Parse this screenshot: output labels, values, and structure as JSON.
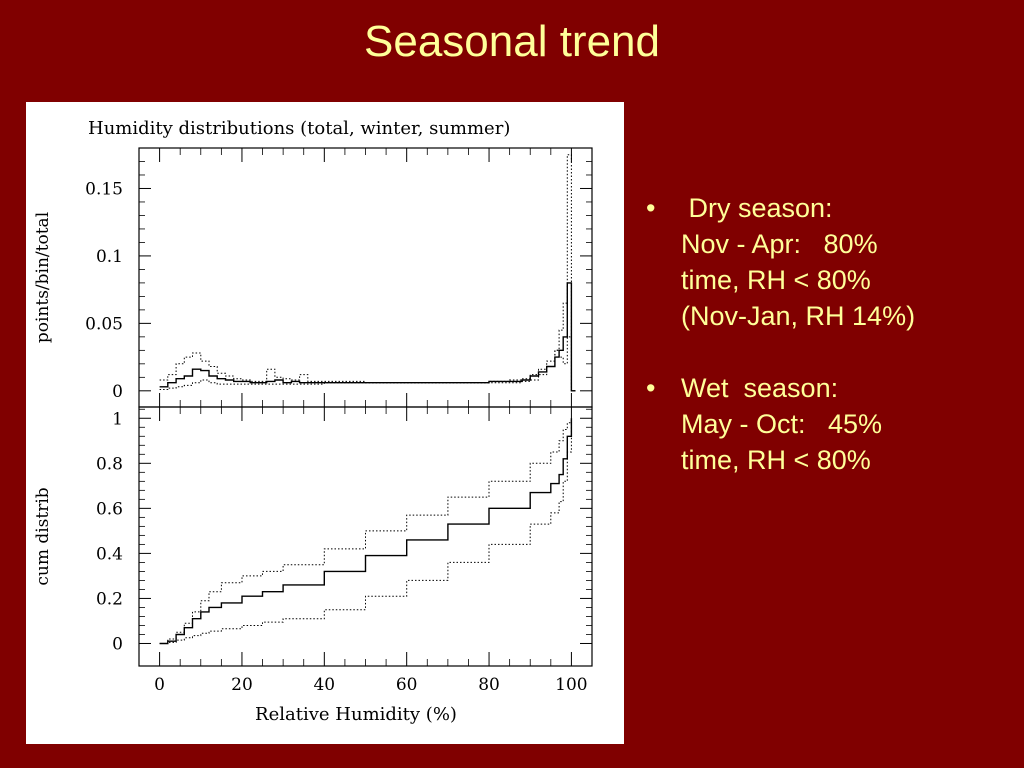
{
  "slide": {
    "title": "Seasonal trend",
    "bullets": [
      {
        "lines": [
          " Dry season:",
          "Nov - Apr:   80%",
          "time, RH < 80%",
          "(Nov-Jan, RH 14%)"
        ]
      },
      {
        "lines": [
          "Wet  season:",
          "May - Oct:   45%",
          "time, RH < 80%"
        ]
      }
    ]
  },
  "chart_data": [
    {
      "type": "line",
      "title": "Humidity distributions (total, winter, summer)",
      "xlabel": "",
      "ylabel": "points/bin/total",
      "xlim": [
        -5,
        105
      ],
      "ylim": [
        -0.012,
        0.18
      ],
      "yticks": [
        0,
        0.05,
        0.1,
        0.15
      ],
      "ytick_labels": [
        "0",
        "0.05",
        "0.1",
        "0.15"
      ],
      "xticks": [
        0,
        20,
        40,
        60,
        80,
        100
      ],
      "step": true,
      "series": [
        {
          "style": "solid",
          "x": [
            0,
            2,
            4,
            6,
            8,
            10,
            12,
            14,
            16,
            18,
            20,
            22,
            24,
            26,
            28,
            30,
            32,
            34,
            36,
            40,
            50,
            60,
            70,
            80,
            85,
            88,
            90,
            92,
            94,
            96,
            97,
            98,
            99,
            100,
            101
          ],
          "y": [
            0.003,
            0.006,
            0.009,
            0.011,
            0.016,
            0.015,
            0.011,
            0.009,
            0.008,
            0.007,
            0.007,
            0.006,
            0.006,
            0.007,
            0.008,
            0.006,
            0.007,
            0.006,
            0.006,
            0.006,
            0.006,
            0.006,
            0.006,
            0.007,
            0.007,
            0.008,
            0.011,
            0.014,
            0.018,
            0.025,
            0.03,
            0.04,
            0.08,
            0.0,
            0.0
          ]
        },
        {
          "style": "dotted",
          "x": [
            0,
            2,
            4,
            6,
            8,
            10,
            12,
            14,
            16,
            18,
            20,
            22,
            24,
            26,
            28,
            30,
            32,
            34,
            36,
            40,
            50,
            60,
            70,
            80,
            85,
            88,
            90,
            92,
            94,
            96,
            97,
            98,
            99,
            100,
            101
          ],
          "y": [
            0.008,
            0.012,
            0.02,
            0.025,
            0.028,
            0.022,
            0.018,
            0.013,
            0.011,
            0.009,
            0.008,
            0.007,
            0.007,
            0.016,
            0.01,
            0.009,
            0.008,
            0.012,
            0.007,
            0.007,
            0.006,
            0.006,
            0.006,
            0.006,
            0.006,
            0.007,
            0.008,
            0.012,
            0.018,
            0.03,
            0.045,
            0.065,
            0.175,
            0.0,
            0.0
          ]
        },
        {
          "style": "dotted",
          "x": [
            0,
            2,
            4,
            6,
            8,
            10,
            12,
            14,
            16,
            18,
            20,
            22,
            24,
            26,
            28,
            30,
            32,
            34,
            36,
            40,
            50,
            60,
            70,
            80,
            85,
            88,
            90,
            92,
            94,
            96,
            97,
            98,
            99,
            100,
            101
          ],
          "y": [
            0.001,
            0.002,
            0.003,
            0.004,
            0.006,
            0.008,
            0.006,
            0.005,
            0.005,
            0.005,
            0.005,
            0.005,
            0.005,
            0.005,
            0.005,
            0.005,
            0.005,
            0.005,
            0.005,
            0.006,
            0.006,
            0.006,
            0.006,
            0.007,
            0.008,
            0.009,
            0.012,
            0.016,
            0.022,
            0.03,
            0.025,
            0.02,
            0.04,
            0.0,
            0.0
          ]
        }
      ]
    },
    {
      "type": "line",
      "title": "",
      "xlabel": "Relative Humidity (%)",
      "ylabel": "cum distrib",
      "xlim": [
        -5,
        105
      ],
      "ylim": [
        -0.1,
        1.05
      ],
      "yticks": [
        0,
        0.2,
        0.4,
        0.6,
        0.8,
        1
      ],
      "ytick_labels": [
        "0",
        "0.2",
        "0.4",
        "0.6",
        "0.8",
        "1"
      ],
      "xticks": [
        0,
        20,
        40,
        60,
        80,
        100
      ],
      "xtick_labels": [
        "0",
        "20",
        "40",
        "60",
        "80",
        "100"
      ],
      "step": true,
      "series": [
        {
          "style": "dotted",
          "x": [
            0,
            2,
            4,
            6,
            8,
            10,
            12,
            15,
            20,
            25,
            30,
            40,
            50,
            60,
            70,
            80,
            90,
            95,
            97,
            98,
            99,
            100
          ],
          "y": [
            0,
            0.02,
            0.05,
            0.09,
            0.14,
            0.19,
            0.23,
            0.27,
            0.3,
            0.32,
            0.35,
            0.42,
            0.5,
            0.57,
            0.65,
            0.72,
            0.8,
            0.85,
            0.9,
            0.95,
            0.98,
            1.0
          ]
        },
        {
          "style": "solid",
          "x": [
            0,
            2,
            4,
            6,
            8,
            10,
            12,
            15,
            20,
            25,
            30,
            40,
            50,
            60,
            70,
            80,
            90,
            95,
            97,
            98,
            99,
            100
          ],
          "y": [
            0,
            0.01,
            0.04,
            0.07,
            0.11,
            0.14,
            0.16,
            0.18,
            0.21,
            0.23,
            0.26,
            0.32,
            0.39,
            0.46,
            0.53,
            0.6,
            0.67,
            0.71,
            0.75,
            0.82,
            0.92,
            1.0
          ]
        },
        {
          "style": "dotted",
          "x": [
            0,
            2,
            4,
            6,
            8,
            10,
            12,
            15,
            20,
            25,
            30,
            40,
            50,
            60,
            70,
            80,
            90,
            95,
            97,
            98,
            99,
            100
          ],
          "y": [
            0,
            0.005,
            0.015,
            0.025,
            0.035,
            0.045,
            0.055,
            0.065,
            0.08,
            0.095,
            0.11,
            0.15,
            0.21,
            0.28,
            0.36,
            0.44,
            0.53,
            0.58,
            0.63,
            0.72,
            0.85,
            1.0
          ]
        }
      ]
    }
  ]
}
